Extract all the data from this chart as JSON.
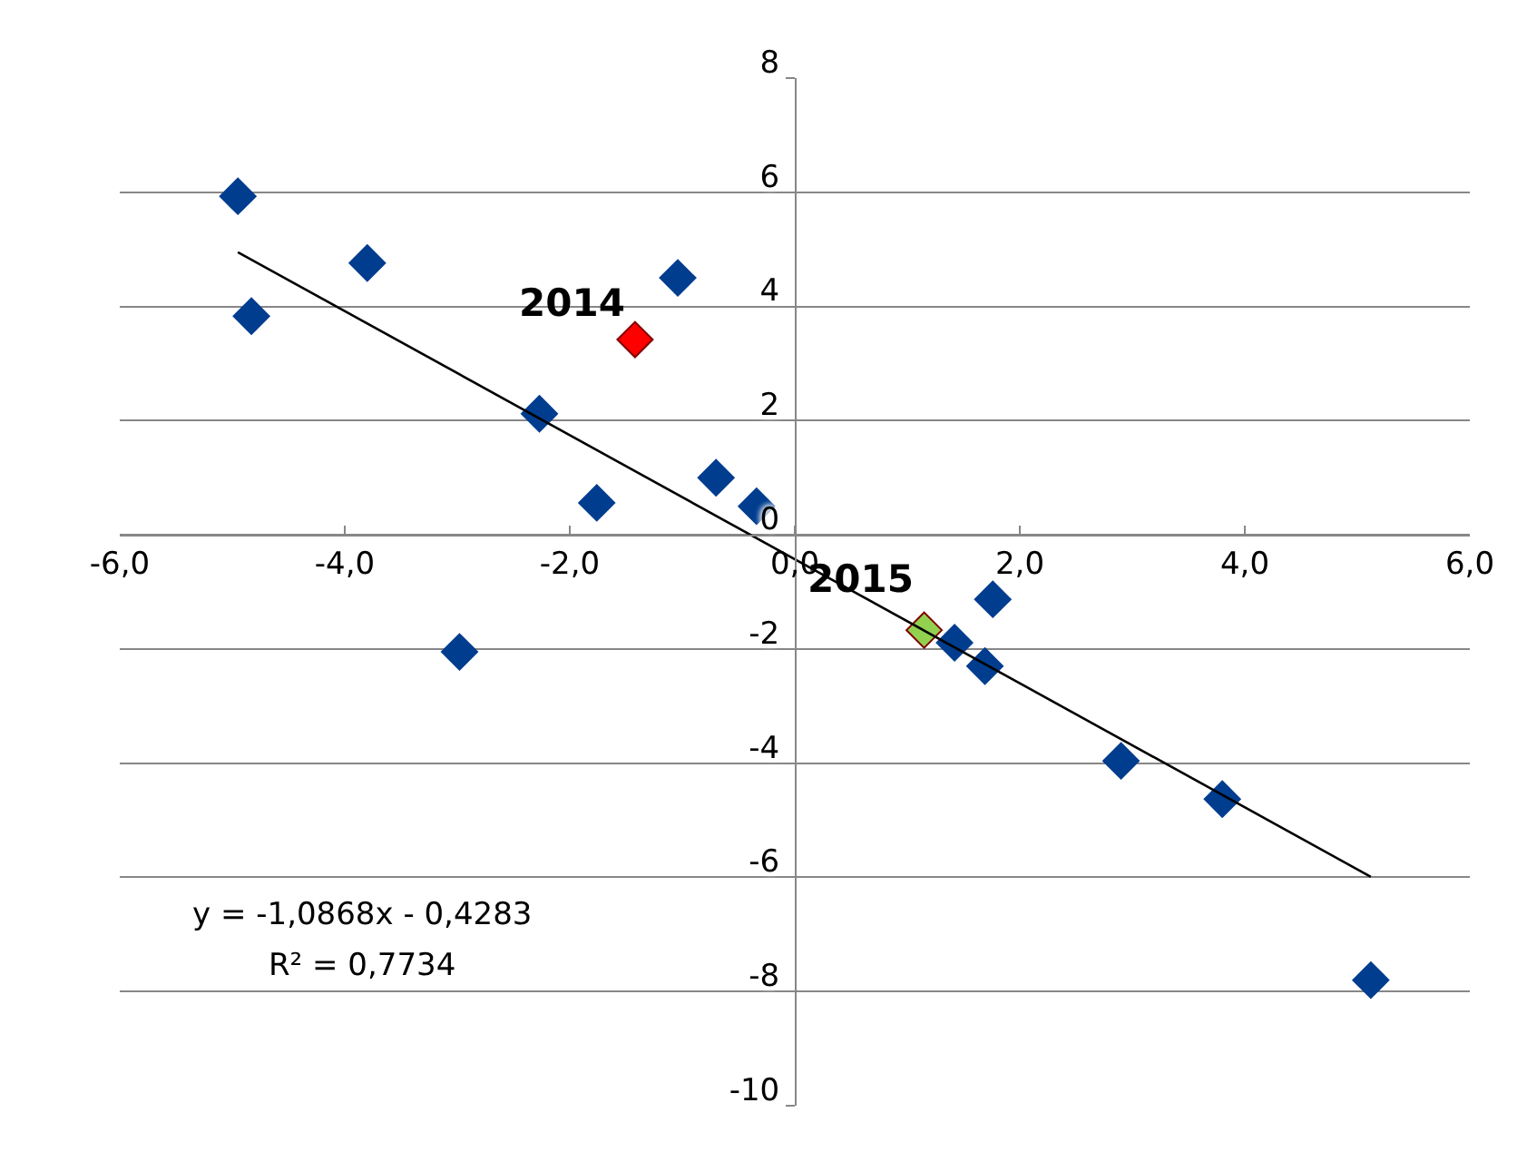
{
  "chart_data": {
    "type": "scatter",
    "x": [
      -4.95,
      -4.83,
      -3.8,
      -2.98,
      -2.27,
      -1.76,
      -1.42,
      -1.04,
      -0.7,
      -0.34,
      1.15,
      1.42,
      1.69,
      1.76,
      2.9,
      3.8,
      5.12
    ],
    "series": [
      {
        "marker": "diamond",
        "color": "#003d8f",
        "colors": [
          "#003d8f",
          "#003d8f",
          "#003d8f",
          "#003d8f",
          "#003d8f",
          "#003d8f",
          "#ff0000",
          "#003d8f",
          "#003d8f",
          "#003d8f",
          "#92d050",
          "#003d8f",
          "#003d8f",
          "#003d8f",
          "#003d8f",
          "#003d8f",
          "#003d8f"
        ],
        "values": [
          5.93,
          3.83,
          4.76,
          -2.05,
          2.12,
          0.56,
          3.42,
          4.5,
          1.0,
          0.5,
          -1.67,
          -1.89,
          -2.3,
          -1.13,
          -3.96,
          -4.63,
          -7.8
        ]
      },
      {
        "type": "line",
        "color": "#000000",
        "line_style": "solid",
        "marker": "none",
        "x": [
          -4.95,
          5.12
        ],
        "values": [
          4.95,
          -5.99
        ]
      }
    ],
    "annotations": [
      {
        "text": "2014",
        "x": -1.42,
        "y": 3.42
      },
      {
        "text": "2015",
        "x": 1.15,
        "y": -1.67
      },
      "y = -1,0868x - 0,4283",
      "R² = 0,7734"
    ],
    "xlim": [
      -6,
      6
    ],
    "ylim": [
      -10,
      8
    ],
    "xticks": [
      {
        "value": -6,
        "label": "-6,0"
      },
      {
        "value": -4,
        "label": "-4,0"
      },
      {
        "value": -2,
        "label": "-2,0"
      },
      {
        "value": 0,
        "label": "0,0"
      },
      {
        "value": 2,
        "label": "2,0"
      },
      {
        "value": 4,
        "label": "4,0"
      },
      {
        "value": 6,
        "label": "6,0"
      }
    ],
    "yticks": [
      -10,
      -8,
      -6,
      -4,
      -2,
      0,
      2,
      4,
      6,
      8
    ],
    "grid": "y"
  }
}
